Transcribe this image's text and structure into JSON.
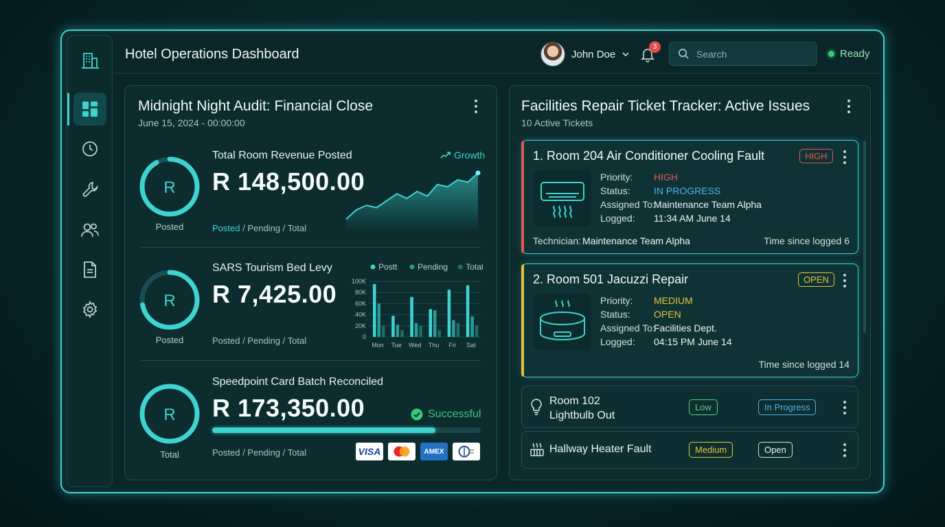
{
  "header": {
    "title": "Hotel Operations Dashboard",
    "user_name": "John Doe",
    "notification_count": "3",
    "search_placeholder": "Search",
    "status": "Ready"
  },
  "sidebar": {
    "items": [
      {
        "icon": "building-icon"
      },
      {
        "icon": "dashboard-icon",
        "active": true
      },
      {
        "icon": "clock-icon"
      },
      {
        "icon": "wrench-icon"
      },
      {
        "icon": "users-icon"
      },
      {
        "icon": "document-icon"
      },
      {
        "icon": "gear-icon"
      }
    ]
  },
  "audit": {
    "title": "Midnight Night Audit: Financial Close",
    "date": "June 15, 2024 - 00:00:00",
    "metrics": [
      {
        "label": "Total Room Revenue Posted",
        "value": "R 148,500.00",
        "ring_letter": "R",
        "ring_caption": "Posted",
        "ring_fraction": 0.92,
        "legend_posted": "Posted",
        "legend_rest": " / Pending / Total",
        "trend_label": "Growth"
      },
      {
        "label": "SARS Tourism Bed Levy",
        "value": "R 7,425.00",
        "ring_letter": "R",
        "ring_caption": "Posted",
        "ring_fraction": 0.72,
        "legend_text": "Posted / Pending / Total"
      },
      {
        "label": "Speedpoint Card Batch Reconciled",
        "value": "R 173,350.00",
        "ring_letter": "R",
        "ring_caption": "Total",
        "ring_fraction": 1.0,
        "legend_text": "Posted / Pending / Total",
        "status": "Successful",
        "progress": 0.83,
        "cards": [
          "VISA",
          "mastercard-icon",
          "AMEX",
          "diners-club-icon"
        ]
      }
    ]
  },
  "chart_data": [
    {
      "type": "area",
      "title": "",
      "series": [
        {
          "values": [
            2,
            4,
            5,
            4.5,
            6,
            7.5,
            6.5,
            8,
            7,
            9.5,
            9,
            10.5,
            10,
            12
          ]
        }
      ]
    },
    {
      "type": "bar",
      "categories": [
        "Mon",
        "Tue",
        "Wed",
        "Thu",
        "Fri",
        "Sat"
      ],
      "series": [
        {
          "name": "Postt",
          "values": [
            95,
            38,
            72,
            50,
            85,
            93
          ],
          "color": "#3fd3d0"
        },
        {
          "name": "Pending",
          "values": [
            60,
            22,
            25,
            48,
            30,
            37
          ],
          "color": "#2a9a97"
        },
        {
          "name": "Total",
          "values": [
            20,
            12,
            20,
            12,
            25,
            20
          ],
          "color": "#1f6c6a"
        }
      ],
      "yticks": [
        "100K",
        "80K",
        "60K",
        "40K",
        "20K",
        "0"
      ],
      "ylim": [
        0,
        100
      ],
      "legend": "top"
    }
  ],
  "tickets": {
    "title": "Facilities Repair Ticket Tracker: Active Issues",
    "subtitle": "10 Active Tickets",
    "fields": {
      "priority": "Priority:",
      "status": "Status:",
      "assigned": "Assigned To:",
      "logged": "Logged:"
    },
    "expanded": [
      {
        "title": "1. Room 204 Air Conditioner Cooling Fault",
        "badge": "HIGH",
        "priority": "HIGH",
        "status": "IN PROGRESS",
        "assigned": "Maintenance Team Alpha",
        "logged": "11:34 AM June 14",
        "tech_label": "Technician:",
        "tech_value": "Maintenance Team Alpha",
        "elapsed": "Time since logged 6",
        "icon": "air-conditioner-icon"
      },
      {
        "title": "2. Room 501 Jacuzzi Repair",
        "badge": "OPEN",
        "priority": "MEDIUM",
        "status": "OPEN",
        "assigned": "Facilities Dept.",
        "logged": "04:15 PM June 14",
        "elapsed": "Time since logged 14",
        "icon": "jacuzzi-icon"
      }
    ],
    "compact": [
      {
        "title_line1": "Room 102",
        "title_line2": "Lightbulb Out",
        "priority": "Low",
        "status": "In Progress",
        "icon": "lightbulb-icon"
      },
      {
        "title": "Hallway Heater Fault",
        "priority": "Medium",
        "status": "Open",
        "icon": "heater-icon"
      }
    ]
  },
  "colors": {
    "accent": "#3fd3d0",
    "high": "#e25656",
    "medium": "#e8c13a",
    "in_progress": "#4fb3ea",
    "success": "#36c97a"
  }
}
